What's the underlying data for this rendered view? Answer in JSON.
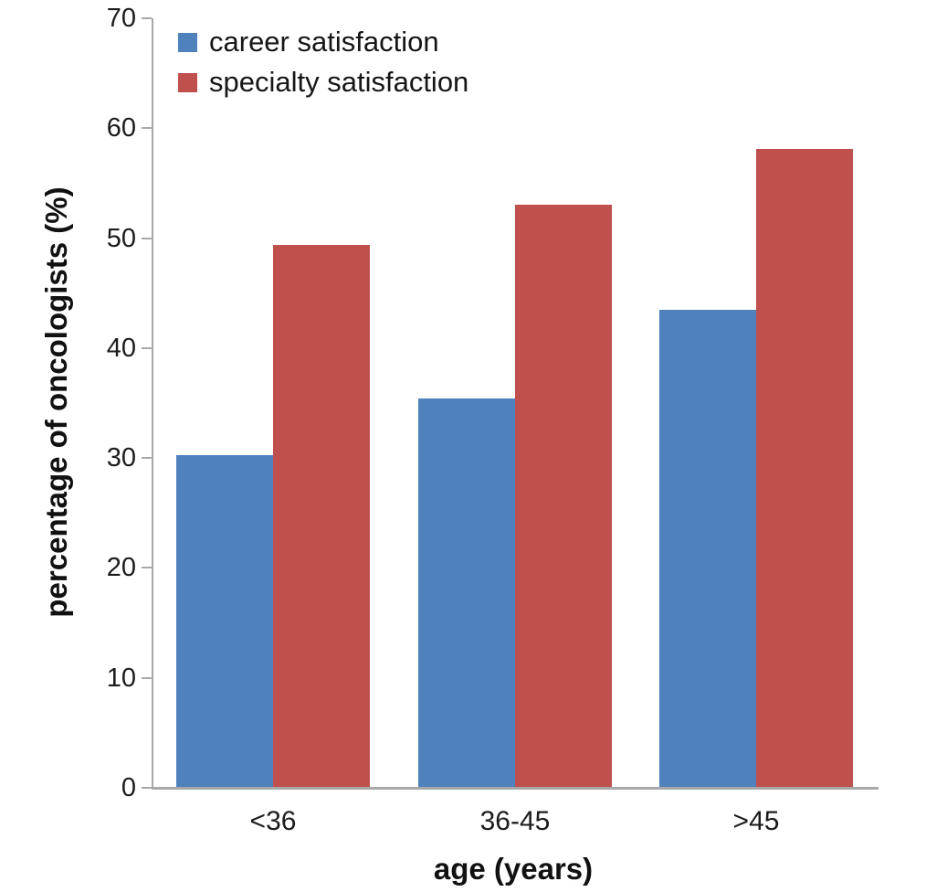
{
  "chart_data": {
    "type": "bar",
    "title": "",
    "categories": [
      "<36",
      "36-45",
      ">45"
    ],
    "series": [
      {
        "name": "career satisfaction",
        "color": "#4f81bd",
        "values": [
          30.3,
          35.4,
          43.5
        ]
      },
      {
        "name": "specialty satisfaction",
        "color": "#c0504d",
        "values": [
          49.4,
          53.0,
          58.1
        ]
      }
    ],
    "xlabel": "age (years)",
    "ylabel": "percentage of oncologists (%)",
    "ylim": [
      0,
      70
    ],
    "ytick_step": 10,
    "yticks": [
      0,
      10,
      20,
      30,
      40,
      50,
      60,
      70
    ],
    "legend_position": "top-left",
    "grid": false,
    "axis_color": "#a8a8a8",
    "text_color": "#1c1c1c"
  }
}
